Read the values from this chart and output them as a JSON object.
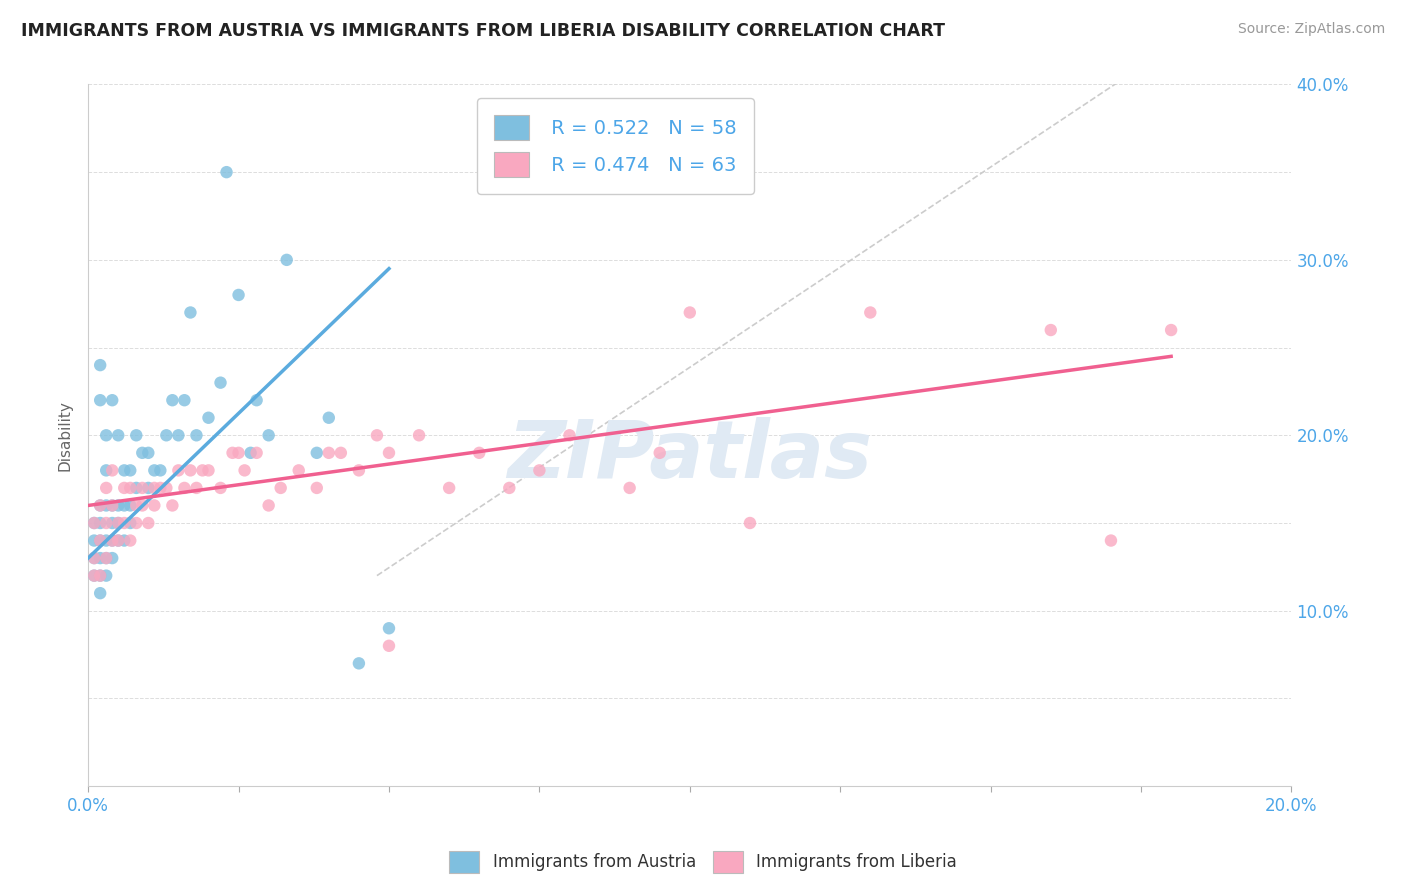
{
  "title": "IMMIGRANTS FROM AUSTRIA VS IMMIGRANTS FROM LIBERIA DISABILITY CORRELATION CHART",
  "source": "Source: ZipAtlas.com",
  "xlabel": "",
  "ylabel": "Disability",
  "xlim": [
    0.0,
    0.2
  ],
  "ylim": [
    0.0,
    0.4
  ],
  "xtick_positions": [
    0.0,
    0.025,
    0.05,
    0.075,
    0.1,
    0.125,
    0.15,
    0.175,
    0.2
  ],
  "xtick_labels": [
    "0.0%",
    "",
    "",
    "",
    "",
    "",
    "",
    "",
    "20.0%"
  ],
  "ytick_positions": [
    0.0,
    0.05,
    0.1,
    0.15,
    0.2,
    0.25,
    0.3,
    0.35,
    0.4
  ],
  "ytick_labels": [
    "",
    "",
    "10.0%",
    "",
    "20.0%",
    "",
    "30.0%",
    "",
    "40.0%"
  ],
  "austria_color": "#7fbfdf",
  "liberia_color": "#f9a8c0",
  "austria_line_color": "#5babde",
  "liberia_line_color": "#f06090",
  "trend_ref_color": "#cccccc",
  "legend_austria_R": "R = 0.522",
  "legend_austria_N": "N = 58",
  "legend_liberia_R": "R = 0.474",
  "legend_liberia_N": "N = 63",
  "watermark": "ZIPatlas",
  "austria_trend_x": [
    0.0,
    0.05
  ],
  "austria_trend_y": [
    0.13,
    0.295
  ],
  "liberia_trend_x": [
    0.0,
    0.18
  ],
  "liberia_trend_y": [
    0.16,
    0.245
  ],
  "ref_line_x": [
    0.048,
    0.175
  ],
  "ref_line_y": [
    0.12,
    0.41
  ],
  "austria_x": [
    0.001,
    0.001,
    0.001,
    0.001,
    0.002,
    0.002,
    0.002,
    0.002,
    0.002,
    0.002,
    0.002,
    0.002,
    0.003,
    0.003,
    0.003,
    0.003,
    0.003,
    0.003,
    0.004,
    0.004,
    0.004,
    0.004,
    0.004,
    0.005,
    0.005,
    0.005,
    0.005,
    0.006,
    0.006,
    0.006,
    0.007,
    0.007,
    0.007,
    0.008,
    0.008,
    0.009,
    0.01,
    0.01,
    0.011,
    0.012,
    0.013,
    0.014,
    0.015,
    0.016,
    0.017,
    0.018,
    0.02,
    0.022,
    0.023,
    0.025,
    0.027,
    0.028,
    0.03,
    0.033,
    0.038,
    0.04,
    0.045,
    0.05
  ],
  "austria_y": [
    0.12,
    0.13,
    0.14,
    0.15,
    0.11,
    0.12,
    0.13,
    0.15,
    0.16,
    0.14,
    0.22,
    0.24,
    0.12,
    0.13,
    0.14,
    0.16,
    0.18,
    0.2,
    0.13,
    0.14,
    0.15,
    0.16,
    0.22,
    0.14,
    0.15,
    0.16,
    0.2,
    0.14,
    0.16,
    0.18,
    0.15,
    0.16,
    0.18,
    0.17,
    0.2,
    0.19,
    0.17,
    0.19,
    0.18,
    0.18,
    0.2,
    0.22,
    0.2,
    0.22,
    0.27,
    0.2,
    0.21,
    0.23,
    0.35,
    0.28,
    0.19,
    0.22,
    0.2,
    0.3,
    0.19,
    0.21,
    0.07,
    0.09
  ],
  "liberia_x": [
    0.001,
    0.001,
    0.001,
    0.002,
    0.002,
    0.002,
    0.003,
    0.003,
    0.003,
    0.004,
    0.004,
    0.004,
    0.005,
    0.005,
    0.006,
    0.006,
    0.007,
    0.007,
    0.008,
    0.008,
    0.009,
    0.009,
    0.01,
    0.011,
    0.011,
    0.012,
    0.013,
    0.014,
    0.015,
    0.016,
    0.017,
    0.018,
    0.019,
    0.02,
    0.022,
    0.024,
    0.025,
    0.026,
    0.028,
    0.03,
    0.032,
    0.035,
    0.038,
    0.04,
    0.042,
    0.045,
    0.048,
    0.05,
    0.055,
    0.06,
    0.065,
    0.07,
    0.075,
    0.08,
    0.09,
    0.095,
    0.1,
    0.11,
    0.13,
    0.16,
    0.17,
    0.18,
    0.05
  ],
  "liberia_y": [
    0.12,
    0.13,
    0.15,
    0.12,
    0.14,
    0.16,
    0.13,
    0.15,
    0.17,
    0.14,
    0.16,
    0.18,
    0.14,
    0.15,
    0.15,
    0.17,
    0.14,
    0.17,
    0.16,
    0.15,
    0.16,
    0.17,
    0.15,
    0.17,
    0.16,
    0.17,
    0.17,
    0.16,
    0.18,
    0.17,
    0.18,
    0.17,
    0.18,
    0.18,
    0.17,
    0.19,
    0.19,
    0.18,
    0.19,
    0.16,
    0.17,
    0.18,
    0.17,
    0.19,
    0.19,
    0.18,
    0.2,
    0.19,
    0.2,
    0.17,
    0.19,
    0.17,
    0.18,
    0.2,
    0.17,
    0.19,
    0.27,
    0.15,
    0.27,
    0.26,
    0.14,
    0.26,
    0.08
  ]
}
